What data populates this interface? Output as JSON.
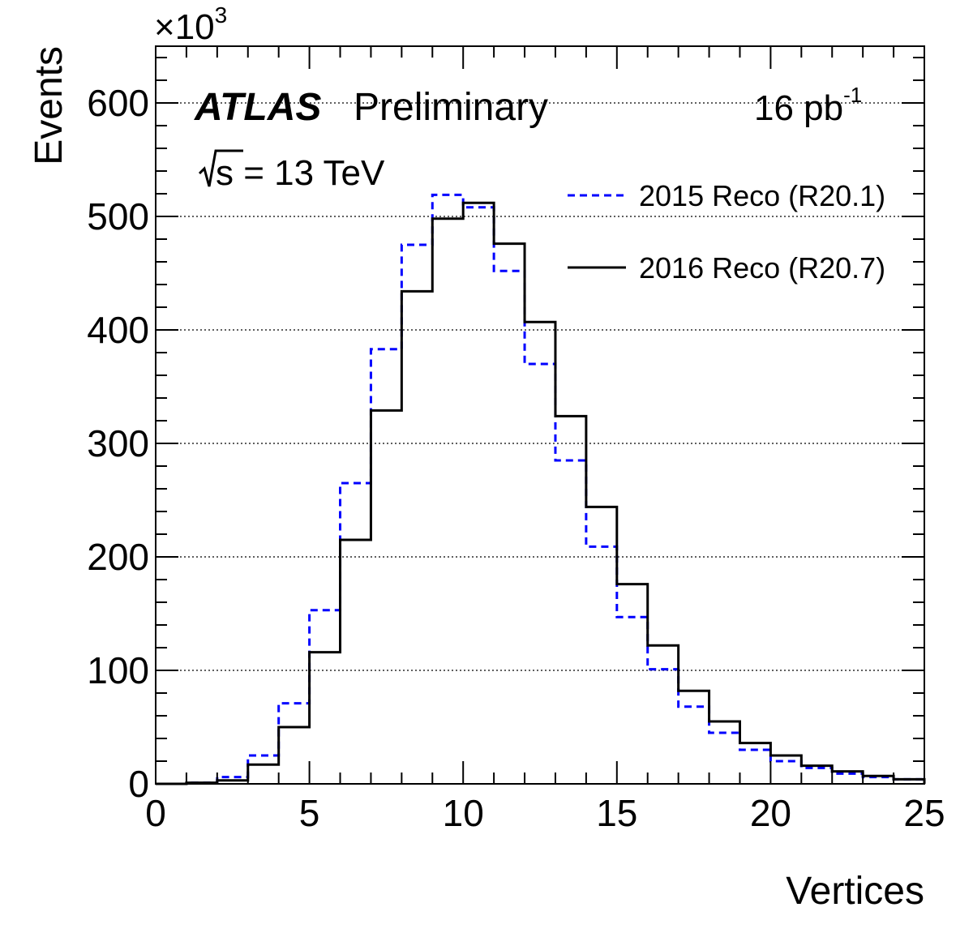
{
  "chart_data": {
    "type": "histogram",
    "xlabel": "Vertices",
    "ylabel": "Events",
    "y_multiplier": {
      "base": "×10",
      "exp": "3"
    },
    "xlim": [
      0,
      25
    ],
    "ylim": [
      0,
      650
    ],
    "x_ticks": [
      "0",
      "5",
      "10",
      "15",
      "20",
      "25"
    ],
    "y_ticks": [
      "0",
      "100",
      "200",
      "300",
      "400",
      "500",
      "600"
    ],
    "grid": "horizontal dotted",
    "bin_edges": [
      0,
      1,
      2,
      3,
      4,
      5,
      6,
      7,
      8,
      9,
      10,
      11,
      12,
      13,
      14,
      15,
      16,
      17,
      18,
      19,
      20,
      21,
      22,
      23,
      24,
      25
    ],
    "series": [
      {
        "name": "2015 Reco (R20.1)",
        "style": "dashed",
        "color": "#0000ff",
        "values": [
          0,
          1,
          6,
          25,
          71,
          153,
          265,
          383,
          475,
          519,
          508,
          452,
          370,
          285,
          209,
          147,
          101,
          68,
          45,
          30,
          20,
          14,
          9,
          6,
          4
        ]
      },
      {
        "name": "2016 Reco (R20.7)",
        "style": "solid",
        "color": "#000000",
        "values": [
          0,
          1,
          3,
          17,
          50,
          116,
          215,
          329,
          434,
          498,
          512,
          476,
          407,
          324,
          244,
          176,
          122,
          82,
          55,
          36,
          25,
          16,
          11,
          7,
          4
        ]
      }
    ],
    "annotations": {
      "experiment": "ATLAS",
      "status": "Preliminary",
      "sqrt_s_label": "s = 13 TeV",
      "lumi_value": "16 pb",
      "lumi_exp": "-1"
    },
    "legend_position": "top-right"
  }
}
